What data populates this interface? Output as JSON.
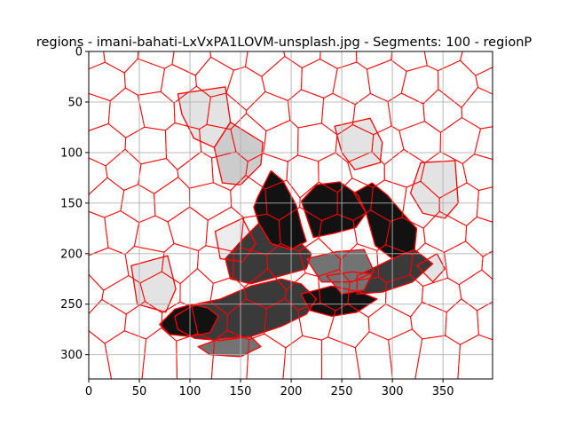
{
  "chart_data": {
    "type": "heatmap",
    "title": "regions - imani-bahati-LxVxPA1LOVM-unsplash.jpg - Segments: 100 - regionP",
    "xlabel": "",
    "ylabel": "",
    "xlim": [
      0,
      399
    ],
    "ylim": [
      324,
      0
    ],
    "xticks": [
      0,
      50,
      100,
      150,
      200,
      250,
      300,
      350
    ],
    "yticks": [
      0,
      50,
      100,
      150,
      200,
      250,
      300
    ],
    "grid": true,
    "boundary_color": "#ff0000",
    "grid_color": "#b0b0b0",
    "shaded_regions": [
      {
        "level": 0.89,
        "color": "#e3e3e3",
        "polygon": [
          [
            88,
            42
          ],
          [
            135,
            35
          ],
          [
            140,
            70
          ],
          [
            124,
            95
          ],
          [
            104,
            86
          ],
          [
            92,
            62
          ]
        ]
      },
      {
        "level": 0.8,
        "color": "#cccccc",
        "polygon": [
          [
            124,
            95
          ],
          [
            140,
            70
          ],
          [
            172,
            90
          ],
          [
            170,
            112
          ],
          [
            150,
            132
          ],
          [
            132,
            130
          ]
        ]
      },
      {
        "level": 0.89,
        "color": "#e3e3e3",
        "polygon": [
          [
            243,
            74
          ],
          [
            278,
            66
          ],
          [
            290,
            90
          ],
          [
            288,
            110
          ],
          [
            263,
            117
          ],
          [
            250,
            100
          ]
        ]
      },
      {
        "level": 0.89,
        "color": "#e3e3e3",
        "polygon": [
          [
            328,
            110
          ],
          [
            362,
            108
          ],
          [
            365,
            150
          ],
          [
            352,
            165
          ],
          [
            330,
            160
          ],
          [
            318,
            140
          ]
        ]
      },
      {
        "level": 0.93,
        "color": "#ececec",
        "polygon": [
          [
            125,
            178
          ],
          [
            152,
            165
          ],
          [
            165,
            190
          ],
          [
            152,
            208
          ],
          [
            130,
            205
          ]
        ]
      },
      {
        "level": 0.89,
        "color": "#e3e3e3",
        "polygon": [
          [
            42,
            212
          ],
          [
            78,
            202
          ],
          [
            86,
            235
          ],
          [
            76,
            258
          ],
          [
            48,
            250
          ]
        ]
      },
      {
        "level": 0.89,
        "color": "#e3e3e3",
        "polygon": [
          [
            324,
            212
          ],
          [
            344,
            200
          ],
          [
            352,
            215
          ],
          [
            340,
            228
          ]
        ]
      },
      {
        "level": 0.07,
        "color": "#121212",
        "polygon": [
          [
            167,
            144
          ],
          [
            180,
            118
          ],
          [
            192,
            128
          ],
          [
            205,
            152
          ],
          [
            210,
            172
          ],
          [
            215,
            188
          ],
          [
            200,
            196
          ],
          [
            180,
            190
          ],
          [
            168,
            170
          ],
          [
            163,
            154
          ]
        ]
      },
      {
        "level": 0.07,
        "color": "#121212",
        "polygon": [
          [
            210,
            148
          ],
          [
            225,
            132
          ],
          [
            248,
            129
          ],
          [
            266,
            142
          ],
          [
            274,
            160
          ],
          [
            264,
            174
          ],
          [
            242,
            180
          ],
          [
            222,
            184
          ]
        ]
      },
      {
        "level": 0.07,
        "color": "#121212",
        "polygon": [
          [
            262,
            140
          ],
          [
            280,
            130
          ],
          [
            295,
            142
          ],
          [
            312,
            162
          ],
          [
            324,
            175
          ],
          [
            322,
            196
          ],
          [
            300,
            205
          ],
          [
            283,
            192
          ],
          [
            274,
            160
          ]
        ]
      },
      {
        "level": 0.23,
        "color": "#3a3a3a",
        "polygon": [
          [
            135,
            205
          ],
          [
            150,
            188
          ],
          [
            168,
            170
          ],
          [
            180,
            190
          ],
          [
            200,
            196
          ],
          [
            210,
            190
          ],
          [
            220,
            200
          ],
          [
            215,
            215
          ],
          [
            190,
            222
          ],
          [
            160,
            230
          ],
          [
            140,
            225
          ]
        ]
      },
      {
        "level": 0.45,
        "color": "#737373",
        "polygon": [
          [
            215,
            205
          ],
          [
            245,
            198
          ],
          [
            272,
            196
          ],
          [
            282,
            218
          ],
          [
            260,
            228
          ],
          [
            230,
            228
          ]
        ]
      },
      {
        "level": 0.23,
        "color": "#3a3a3a",
        "polygon": [
          [
            265,
            222
          ],
          [
            300,
            205
          ],
          [
            322,
            196
          ],
          [
            340,
            210
          ],
          [
            320,
            228
          ],
          [
            290,
            238
          ],
          [
            265,
            240
          ]
        ]
      },
      {
        "level": 0.23,
        "color": "#3a3a3a",
        "polygon": [
          [
            85,
            262
          ],
          [
            105,
            250
          ],
          [
            130,
            245
          ],
          [
            160,
            232
          ],
          [
            190,
            225
          ],
          [
            210,
            230
          ],
          [
            225,
            245
          ],
          [
            215,
            260
          ],
          [
            190,
            272
          ],
          [
            160,
            282
          ],
          [
            130,
            286
          ],
          [
            105,
            284
          ],
          [
            88,
            275
          ]
        ]
      },
      {
        "level": 0.07,
        "color": "#121212",
        "polygon": [
          [
            70,
            270
          ],
          [
            85,
            255
          ],
          [
            102,
            250
          ],
          [
            118,
            254
          ],
          [
            128,
            262
          ],
          [
            120,
            278
          ],
          [
            100,
            282
          ],
          [
            80,
            280
          ]
        ]
      },
      {
        "level": 0.07,
        "color": "#121212",
        "polygon": [
          [
            210,
            240
          ],
          [
            240,
            232
          ],
          [
            268,
            238
          ],
          [
            285,
            245
          ],
          [
            265,
            258
          ],
          [
            240,
            262
          ],
          [
            218,
            256
          ]
        ]
      },
      {
        "level": 0.45,
        "color": "#737373",
        "polygon": [
          [
            235,
            222
          ],
          [
            260,
            218
          ],
          [
            280,
            220
          ],
          [
            272,
            236
          ],
          [
            250,
            240
          ]
        ]
      },
      {
        "level": 0.45,
        "color": "#737373",
        "polygon": [
          [
            108,
            292
          ],
          [
            130,
            284
          ],
          [
            160,
            282
          ],
          [
            170,
            292
          ],
          [
            150,
            302
          ],
          [
            120,
            300
          ]
        ]
      }
    ]
  }
}
